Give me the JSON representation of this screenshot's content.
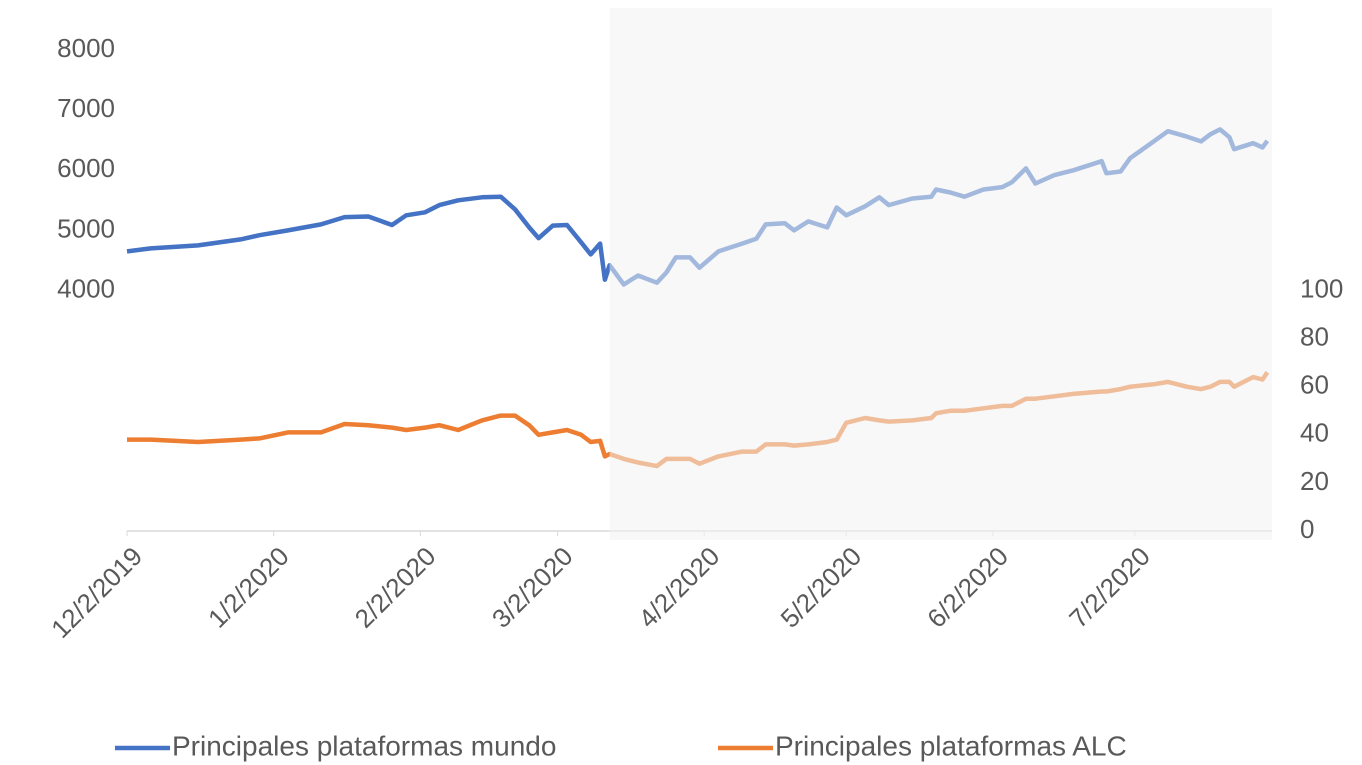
{
  "chart_data": {
    "type": "line",
    "x": [
      "12/2/2019",
      "12/7/2019",
      "12/17/2019",
      "12/26/2019",
      "12/30/2019",
      "1/5/2020",
      "1/12/2020",
      "1/17/2020",
      "1/22/2020",
      "1/27/2020",
      "1/30/2020",
      "2/3/2020",
      "2/6/2020",
      "2/10/2020",
      "2/15/2020",
      "2/19/2020",
      "2/22/2020",
      "2/25/2020",
      "2/27/2020",
      "3/1/2020",
      "3/4/2020",
      "3/7/2020",
      "3/9/2020",
      "3/11/2020",
      "3/12/2020",
      "3/13/2020",
      "3/16/2020",
      "3/19/2020",
      "3/23/2020",
      "3/25/2020",
      "3/27/2020",
      "3/30/2020",
      "4/1/2020",
      "4/5/2020",
      "4/10/2020",
      "4/13/2020",
      "4/15/2020",
      "4/19/2020",
      "4/21/2020",
      "4/24/2020",
      "4/28/2020",
      "4/30/2020",
      "5/2/2020",
      "5/6/2020",
      "5/9/2020",
      "5/11/2020",
      "5/16/2020",
      "5/20/2020",
      "5/21/2020",
      "5/24/2020",
      "5/27/2020",
      "5/31/2020",
      "6/4/2020",
      "6/6/2020",
      "6/9/2020",
      "6/11/2020",
      "6/15/2020",
      "6/19/2020",
      "6/25/2020",
      "6/26/2020",
      "6/29/2020",
      "7/1/2020",
      "7/6/2020",
      "7/9/2020",
      "7/13/2020",
      "7/16/2020",
      "7/18/2020",
      "7/20/2020",
      "7/22/2020",
      "7/23/2020",
      "7/27/2020",
      "7/29/2020",
      "7/30/2020"
    ],
    "series": [
      {
        "name": "Principales plataformas mundo",
        "color": "#4472c4",
        "values": [
          4650,
          4700,
          4750,
          4850,
          4920,
          5000,
          5100,
          5220,
          5230,
          5090,
          5250,
          5300,
          5420,
          5500,
          5550,
          5560,
          5350,
          5050,
          4870,
          5080,
          5090,
          4800,
          4600,
          4780,
          4180,
          4420,
          4100,
          4250,
          4130,
          4300,
          4550,
          4550,
          4380,
          4650,
          4780,
          4860,
          5100,
          5120,
          5000,
          5150,
          5050,
          5380,
          5250,
          5400,
          5550,
          5420,
          5530,
          5560,
          5680,
          5630,
          5560,
          5680,
          5720,
          5800,
          6030,
          5780,
          5920,
          6000,
          6150,
          5950,
          5980,
          6200,
          6480,
          6650,
          6560,
          6480,
          6600,
          6680,
          6550,
          6350,
          6450,
          6380,
          6490
        ]
      },
      {
        "name": "Principales plataformas ALC",
        "color": "#ed7d31",
        "axis": "y2",
        "values": [
          38,
          38,
          37,
          38,
          38.5,
          41,
          41,
          44.5,
          44,
          43,
          42,
          43,
          44,
          42,
          46,
          48,
          48,
          44,
          40,
          41,
          42,
          40,
          37,
          37.5,
          31,
          32,
          30,
          28.5,
          27,
          30,
          30,
          30,
          28,
          31,
          33,
          33,
          36,
          36,
          35.5,
          36,
          37,
          38,
          45,
          47,
          46,
          45.5,
          46,
          47,
          49,
          50,
          50,
          51,
          52,
          52,
          55,
          55,
          56,
          57,
          58,
          58,
          59,
          60,
          61,
          62,
          60,
          59,
          60,
          62,
          62,
          60,
          64,
          63,
          66
        ]
      }
    ],
    "xlim": [
      "12/2/2019",
      "7/31/2020"
    ],
    "xticks": [
      "12/2/2019",
      "1/2/2020",
      "2/2/2020",
      "3/2/2020",
      "4/2/2020",
      "5/2/2020",
      "6/2/2020",
      "7/2/2020"
    ],
    "ylim": [
      0,
      8000
    ],
    "yticks": [
      4000,
      5000,
      6000,
      7000,
      8000
    ],
    "y2lim": [
      0,
      200
    ],
    "y2ticks": [
      0,
      20,
      40,
      60,
      80,
      100
    ],
    "shaded_from": "3/13/2020",
    "legend": "bottom"
  }
}
